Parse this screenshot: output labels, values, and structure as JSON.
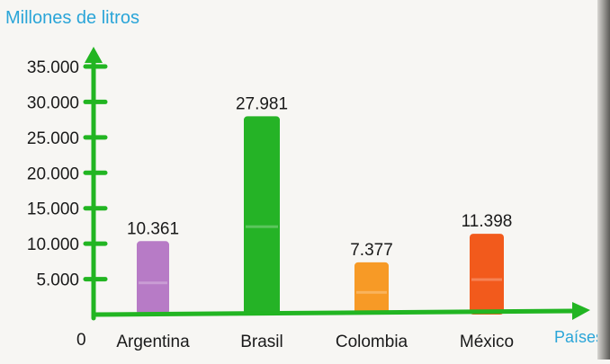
{
  "chart_data": {
    "type": "bar",
    "ylabel": "Millones de litros",
    "xlabel": "Países",
    "origin_label": "0",
    "ylim": [
      0,
      35000
    ],
    "yticks": [
      {
        "value": 5000,
        "label": "5.000"
      },
      {
        "value": 10000,
        "label": "10.000"
      },
      {
        "value": 15000,
        "label": "15.000"
      },
      {
        "value": 20000,
        "label": "20.000"
      },
      {
        "value": 25000,
        "label": "25.000"
      },
      {
        "value": 30000,
        "label": "30.000"
      },
      {
        "value": 35000,
        "label": "35.000"
      }
    ],
    "categories": [
      "Argentina",
      "Brasil",
      "Colombia",
      "México"
    ],
    "values": [
      10361,
      27981,
      7377,
      11398
    ],
    "value_labels": [
      "10.361",
      "27.981",
      "7.377",
      "11.398"
    ],
    "bar_colors": [
      "#b77bc6",
      "#25b326",
      "#f79a26",
      "#f25a1c"
    ],
    "axis_color": "#22b522",
    "label_color": "#2aa5d8",
    "grid": false
  }
}
